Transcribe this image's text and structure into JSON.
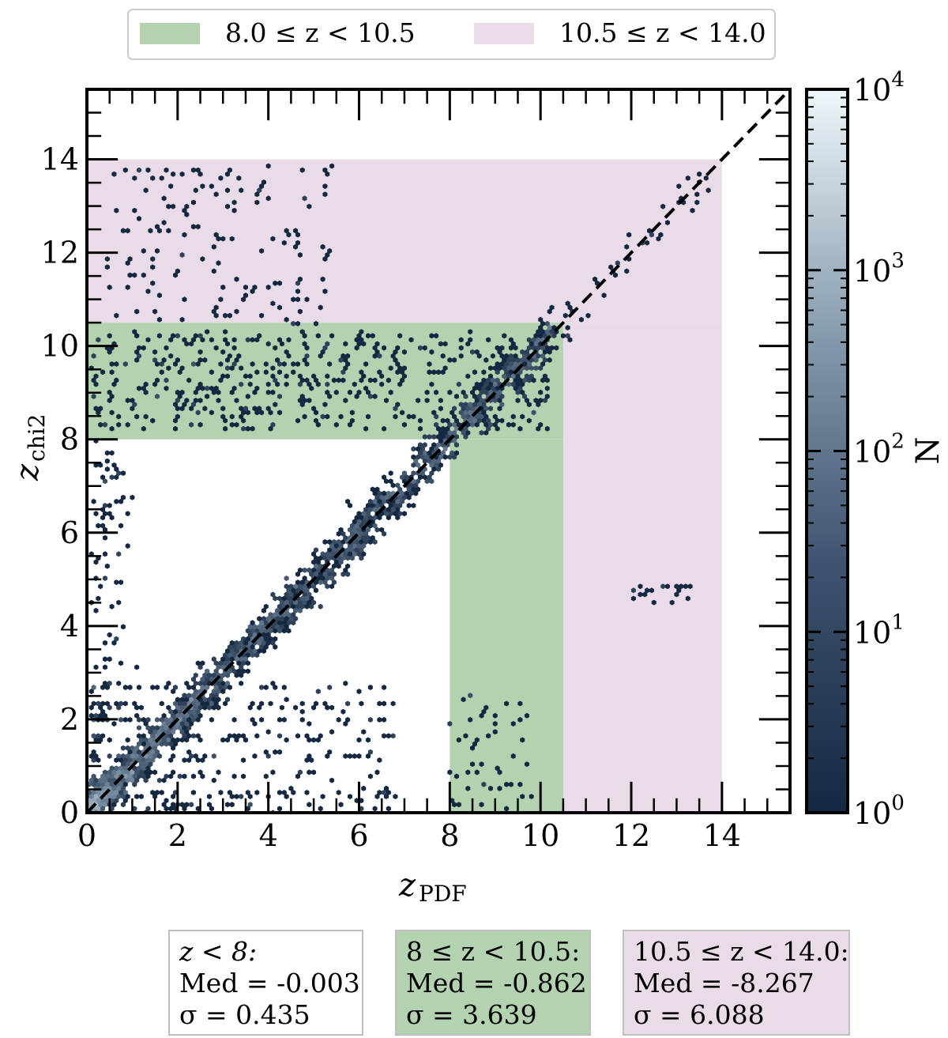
{
  "chart_data": {
    "type": "heatmap",
    "subtype": "hexbin",
    "xlabel": "z",
    "xlabel_sub": "PDF",
    "ylabel": "z",
    "ylabel_sub": "chi2",
    "xlim": [
      0,
      15.5
    ],
    "ylim": [
      0,
      15.5
    ],
    "xticks": [
      0,
      2,
      4,
      6,
      8,
      10,
      12,
      14
    ],
    "yticks": [
      0,
      2,
      4,
      6,
      8,
      10,
      12,
      14
    ],
    "one_to_one_line": true,
    "colorbar": {
      "label": "N",
      "scale": "log",
      "range": [
        1,
        10000
      ],
      "ticks": [
        "10^0",
        "10^1",
        "10^2",
        "10^3",
        "10^4"
      ],
      "colors": {
        "low": "#1c2f4a",
        "mid": "#6f8499",
        "high": "#eaf3f7"
      }
    },
    "legend": {
      "placement": "top",
      "entries": [
        {
          "label": "8.0 ≤ z < 10.5",
          "color": "#b3d3b0"
        },
        {
          "label": "10.5 ≤ z < 14.0",
          "color": "#e9dbe8"
        }
      ]
    },
    "regions": [
      {
        "name": "8.0 ≤ z < 10.5",
        "z_range": [
          8.0,
          10.5
        ],
        "color": "#b3d3b0"
      },
      {
        "name": "10.5 ≤ z < 14.0",
        "z_range": [
          10.5,
          14.0
        ],
        "color": "#e9dbe8"
      }
    ],
    "stats": [
      {
        "range": "z < 8:",
        "median": "Med = -0.003",
        "sigma": "σ = 0.435",
        "color": "#ffffff"
      },
      {
        "range": "8 ≤ z < 10.5:",
        "median": "Med = -0.862",
        "sigma": "σ = 3.639",
        "color": "#b3d3b0"
      },
      {
        "range": "10.5 ≤ z < 14.0:",
        "median": "Med = -8.267",
        "sigma": "σ = 6.088",
        "color": "#e9dbe8"
      }
    ],
    "point_groups": [
      {
        "name": "diagonal",
        "x_range": [
          0,
          10.3
        ],
        "y_offset_range": [
          -0.5,
          0.5
        ],
        "count": 1400,
        "density": "high"
      },
      {
        "name": "low-z-spread",
        "x_range": [
          0.1,
          6.8
        ],
        "y_range": [
          0,
          3
        ],
        "count": 420,
        "density": "medium"
      },
      {
        "name": "green-band-cluster",
        "x_range": [
          0.1,
          10.2
        ],
        "y_range": [
          8.2,
          10.3
        ],
        "count": 500,
        "density": "low"
      },
      {
        "name": "upper-left-cloud",
        "x_range": [
          0.4,
          5.4
        ],
        "y_range": [
          10.5,
          13.9
        ],
        "count": 150,
        "density": "low"
      },
      {
        "name": "upper-diagonal",
        "x_range": [
          10.5,
          13.8
        ],
        "y_range": [
          10.5,
          13.9
        ],
        "count": 45,
        "density": "low"
      },
      {
        "name": "mid-right-cluster",
        "x_range": [
          12.0,
          13.4
        ],
        "y_range": [
          4.5,
          4.9
        ],
        "count": 20,
        "density": "low"
      },
      {
        "name": "right-scatter",
        "x_range": [
          8.0,
          9.8
        ],
        "y_range": [
          0.1,
          2.6
        ],
        "count": 50,
        "density": "low"
      },
      {
        "name": "left-streak",
        "x_range": [
          0.1,
          0.8
        ],
        "y_range": [
          3,
          8
        ],
        "count": 70,
        "density": "medium"
      }
    ]
  }
}
